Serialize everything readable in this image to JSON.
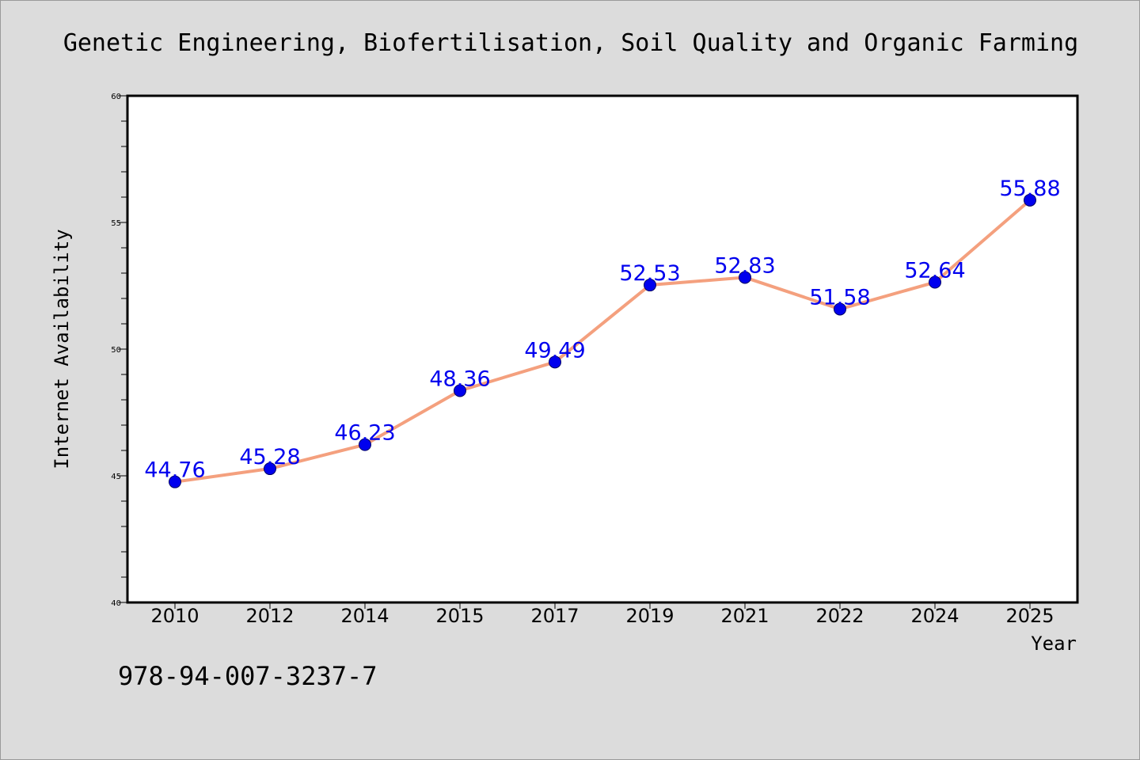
{
  "colors": {
    "background": "#dcdcdc",
    "plot_background": "#ffffff",
    "line": "#f4a07e",
    "marker": "#0000ee",
    "data_label": "#0000ee"
  },
  "footnote": "978-94-007-3237-7",
  "chart_data": {
    "type": "line",
    "title": "Genetic Engineering, Biofertilisation, Soil Quality and Organic Farming",
    "xlabel": "Year",
    "ylabel": "Internet Availability",
    "categories": [
      "2010",
      "2012",
      "2014",
      "2015",
      "2017",
      "2019",
      "2021",
      "2022",
      "2024",
      "2025"
    ],
    "series": [
      {
        "values": [
          44.76,
          45.28,
          46.23,
          48.36,
          49.49,
          52.53,
          52.83,
          51.58,
          52.64,
          55.88
        ],
        "labels": [
          "44.76",
          "45.28",
          "46.23",
          "48.36",
          "49.49",
          "52.53",
          "52.83",
          "51.58",
          "52.64",
          "55.88"
        ]
      }
    ],
    "ylim": [
      40,
      60
    ],
    "yticks": [
      "40",
      "45",
      "50",
      "55",
      "60"
    ],
    "grid": false,
    "legend": "none"
  }
}
